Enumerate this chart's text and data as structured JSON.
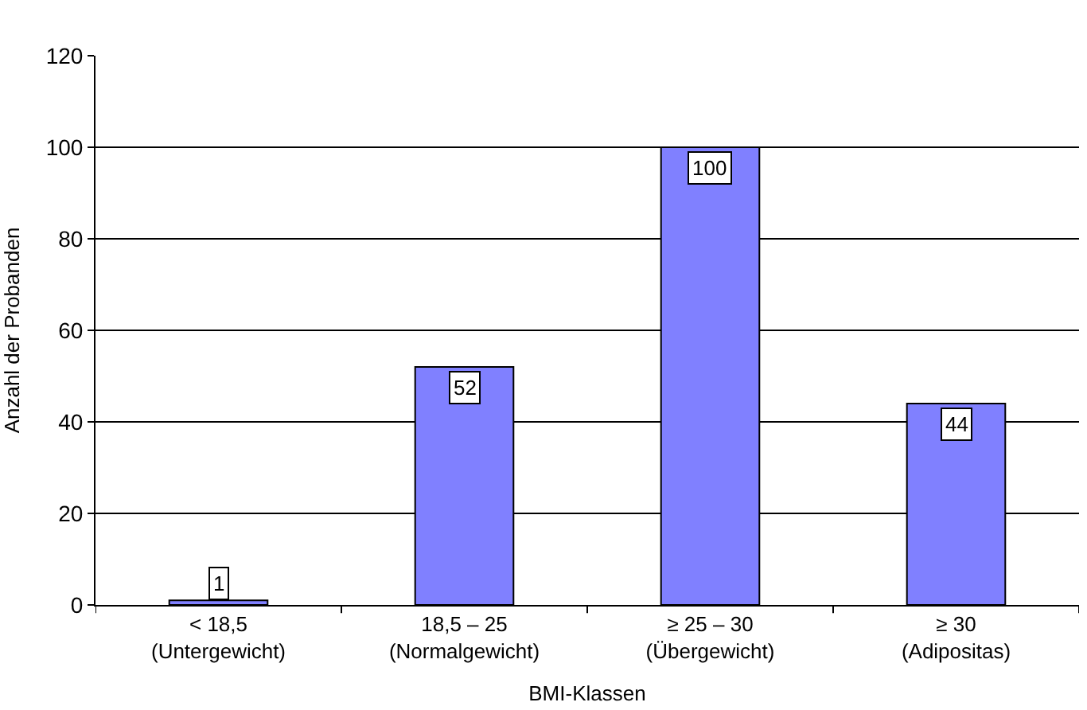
{
  "chart_data": {
    "type": "bar",
    "xlabel": "BMI-Klassen",
    "ylabel": "Anzahl der Probanden",
    "categories": [
      "< 18,5\n(Untergewicht)",
      "18,5 – 25\n(Normalgewicht)",
      "≥ 25 – 30\n(Übergewicht)",
      "≥ 30\n(Adipositas)"
    ],
    "values": [
      1,
      52,
      100,
      44
    ],
    "color": "#8080ff",
    "ylim": [
      0,
      120
    ],
    "yticks": [
      0,
      20,
      40,
      60,
      80,
      100,
      120
    ],
    "grid": "y",
    "data_labels": true
  }
}
